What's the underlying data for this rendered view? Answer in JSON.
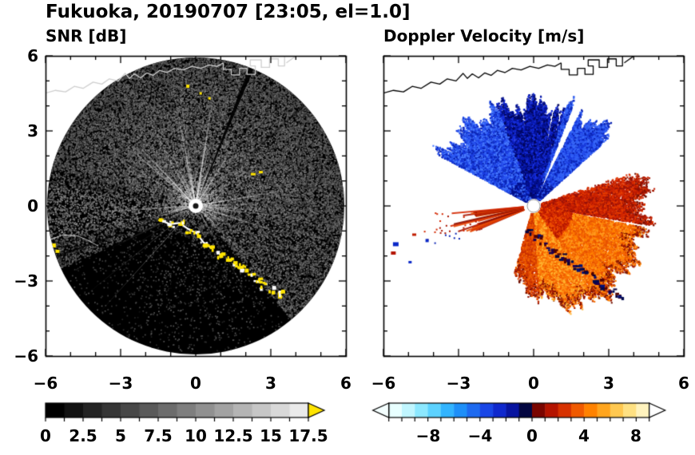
{
  "header": {
    "title": "Fukuoka, 20190707 [23:05, el=1.0]"
  },
  "panels": {
    "snr": {
      "title": "SNR [dB]"
    },
    "velocity": {
      "title": "Doppler Velocity [m/s]"
    }
  },
  "axes": {
    "x_tick_labels": [
      "−6",
      "−3",
      "0",
      "3",
      "6"
    ],
    "y_tick_labels": [
      "6",
      "3",
      "0",
      "−3",
      "−6"
    ],
    "x_range": [
      -6,
      6
    ],
    "y_range": [
      -6,
      6
    ]
  },
  "colorbars": {
    "snr": {
      "tick_labels": [
        "0",
        "2.5",
        "5",
        "7.5",
        "10",
        "12.5",
        "15",
        "17.5"
      ],
      "min": 0,
      "max": 17.5,
      "cell_colors": [
        "#000000",
        "#121212",
        "#242424",
        "#363636",
        "#484848",
        "#5a5a5a",
        "#6c6c6c",
        "#7e7e7e",
        "#909090",
        "#a2a2a2",
        "#b4b4b4",
        "#c6c6c6",
        "#d8d8d8",
        "#eaeaea"
      ],
      "overflow_color": "#ffe400"
    },
    "velocity": {
      "tick_labels": [
        "−8",
        "−4",
        "0",
        "4",
        "8"
      ],
      "min": -11,
      "max": 9,
      "cell_colors": [
        "#e8ffff",
        "#c0f6ff",
        "#8ce8ff",
        "#5cd2ff",
        "#32b4ff",
        "#1e8ff8",
        "#1e6af0",
        "#1946e6",
        "#0f28cd",
        "#0714a0",
        "#030640",
        "#7a0500",
        "#b41400",
        "#d73200",
        "#f05a00",
        "#ff8200",
        "#ffa51e",
        "#ffc850",
        "#ffe182",
        "#fff3be"
      ],
      "under_color": "#f4ffff",
      "over_color": "#ffffff"
    }
  },
  "chart_data": [
    {
      "type": "heatmap",
      "subtype": "radar-ppi",
      "title": "SNR [dB]",
      "x_range": [
        -6,
        6
      ],
      "y_range": [
        -6,
        6
      ],
      "x_ticks": [
        -6,
        -3,
        0,
        3,
        6
      ],
      "y_ticks": [
        -6,
        -3,
        0,
        3,
        6
      ],
      "grid": false,
      "colorbar": {
        "min": 0,
        "max": 17.5,
        "ticks": [
          0,
          2.5,
          5,
          7.5,
          10,
          12.5,
          15,
          17.5
        ],
        "colormap": "black-to-white grayscale with yellow overflow arrow"
      },
      "features": [
        "circular scan disk of radius ~6 centered on the radar at (0,0)",
        "diffuse gray echoes (roughly 2-10 dB) filling the northern, eastern and western sectors",
        "near-black sectors to the south and southwest with sparse speckle",
        "dark blocked-beam wedges from the center toward ~22 deg (NNE) and ~243-250 deg (WSW)",
        "bright white radial spikes emanating from the radar location",
        "strong yellow clutter (>17.5 dB) along the coastline arc from about (-1.5,-0.5) to (3.3,-3.5)",
        "isolated yellow clutter spots near (2.3,1.3), (-0.4,4.9), (0.2,4.6) and (-5.8,-1.6)",
        "map coastline with a castellated harbor outline drawn across the top of the panel"
      ]
    },
    {
      "type": "heatmap",
      "subtype": "radar-ppi",
      "title": "Doppler Velocity [m/s]",
      "x_range": [
        -6,
        6
      ],
      "y_range": [
        -6,
        6
      ],
      "x_ticks": [
        -6,
        -3,
        0,
        3,
        6
      ],
      "y_ticks": [
        -6,
        -3,
        0,
        3,
        6
      ],
      "grid": false,
      "colorbar": {
        "min": -11,
        "max": 9,
        "ticks": [
          -8,
          -4,
          0,
          4,
          8
        ],
        "colormap": "cyan-blue-black for negative, dark red-red-orange-yellow-white for positive"
      },
      "features": [
        "approaching flow fan (blue, about -6 to -1 m/s) from NW through N to NE out to radius ~4.5",
        "receding flow fan (red to orange, about +1 to +6 m/s) from E through SE to S out to radius ~5",
        "narrow red streaks toward WSW cut by thin white blocked-beam slits",
        "white blocked-beam gap through the blue fan near azimuth 24 deg",
        "dark navy ground-clutter line along the coast from about (0.5,-1.8) to (3.3,-3.6)",
        "white no-data gaps between the blue and red fans (ENE and SW)",
        "small blue and red echo patches near the west edge around (-5.6,-1.5)",
        "map coastline with a castellated harbor outline drawn across the top of the panel"
      ]
    }
  ]
}
